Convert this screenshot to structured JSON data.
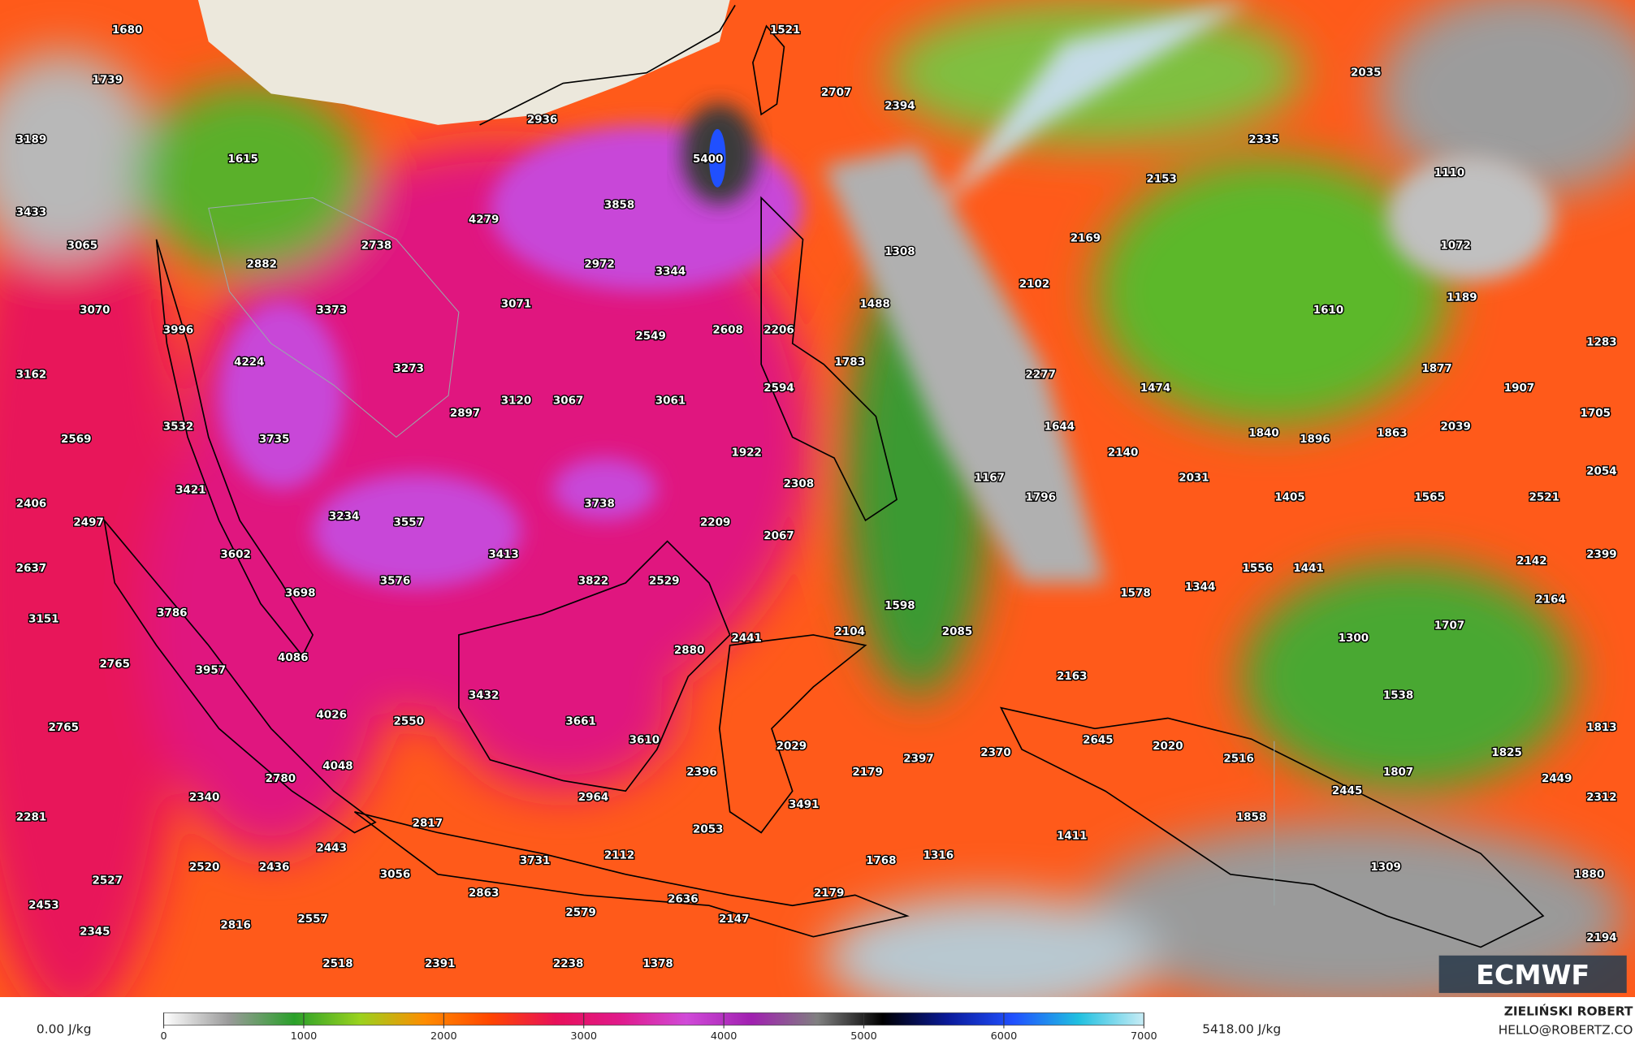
{
  "map": {
    "labels": [
      1680,
      1521,
      1739,
      2707,
      2394,
      2035,
      2936,
      3189,
      2335,
      1615,
      5400,
      1110,
      2153,
      3858,
      3433,
      4279,
      2169,
      3065,
      2738,
      1308,
      1072,
      2882,
      2972,
      3344,
      2102,
      1189,
      1488,
      3071,
      1610,
      3070,
      3373,
      2549,
      2608,
      2206,
      3996,
      1283,
      4224,
      1783,
      3273,
      1877,
      3162,
      2277,
      2594,
      1474,
      1907,
      3120,
      3067,
      3061,
      2897,
      3532,
      1644,
      2039,
      1705,
      2569,
      3735,
      1840,
      1896,
      1863,
      1922,
      2140,
      2054,
      1167,
      2031,
      2308,
      3421,
      2406,
      3738,
      1796,
      1405,
      1565,
      2521,
      2497,
      3234,
      3557,
      2209,
      2067,
      3602,
      3413,
      2399,
      2142,
      1556,
      1441,
      2637,
      3822,
      2529,
      3576,
      3698,
      1578,
      1344,
      2164,
      3786,
      1598,
      3151,
      2085,
      2104,
      1707,
      2441,
      1300,
      4086,
      2880,
      2765,
      3957,
      2163,
      3432,
      1538,
      4026,
      2550,
      3661,
      2765,
      1813,
      3610,
      2645,
      2029,
      2370,
      2397,
      2020,
      2516,
      1825,
      4048,
      2396,
      2179,
      1807,
      2449,
      2780,
      2445,
      2340,
      2312,
      2964,
      3491,
      1858,
      2281,
      2817,
      2053,
      1411,
      2443,
      3731,
      2112,
      1768,
      1316,
      2520,
      2436,
      3056,
      1309,
      1880,
      2527,
      2863,
      2179,
      2636,
      2453,
      2579,
      2147,
      2816,
      2557,
      2345,
      2194,
      2518,
      2391,
      2238,
      1378
    ]
  },
  "logo": "ECMWF",
  "colorbar": {
    "min_label": "0.00 J/kg",
    "max_label": "5418.00 J/kg",
    "lim": [
      0,
      7000
    ],
    "ticks": [
      0,
      1000,
      2000,
      3000,
      4000,
      5000,
      6000,
      7000
    ],
    "colors": [
      "#ffffff",
      "#9a9a9a",
      "#2aa02a",
      "#9ad21e",
      "#ff8c00",
      "#ff4500",
      "#e8105a",
      "#e01a8c",
      "#d04ad8",
      "#a020b0",
      "#808080",
      "#000000",
      "#0a1a9a",
      "#2050ff",
      "#20c0e0",
      "#c8ecf5"
    ]
  },
  "footer": {
    "author": "ZIELIŃSKI ROBERT",
    "email": "HELLO@ROBERTZ.CO"
  }
}
